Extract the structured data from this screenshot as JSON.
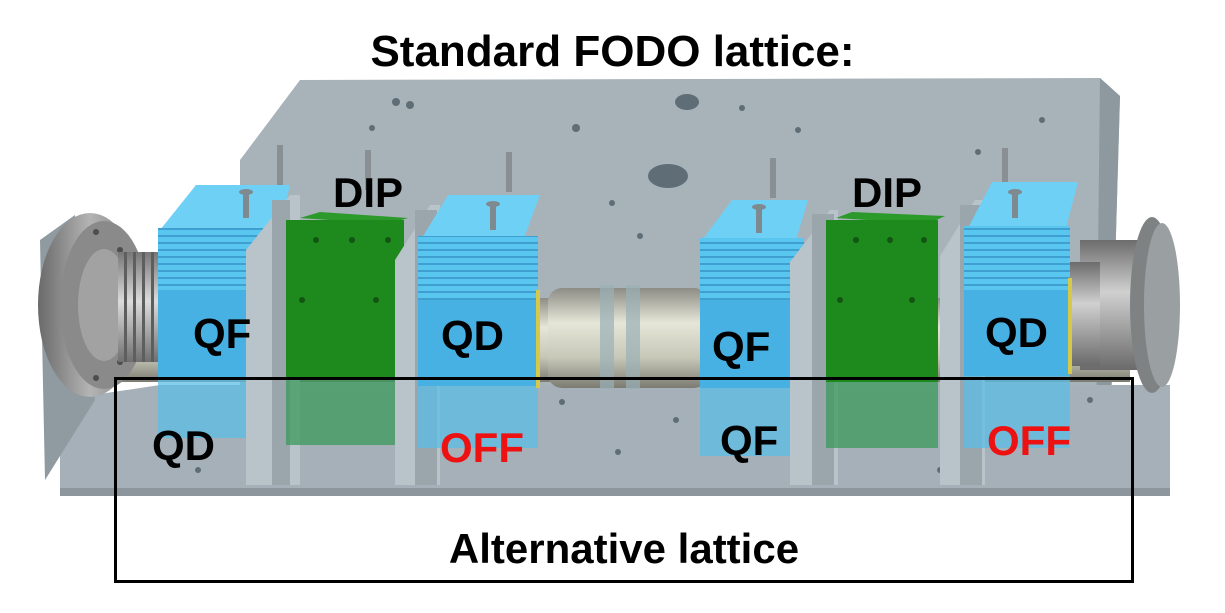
{
  "title": "Standard FODO lattice:",
  "standard_lattice": {
    "labels": [
      "QF",
      "DIP",
      "QD",
      "QF",
      "DIP",
      "QD"
    ]
  },
  "alternative_lattice": {
    "title": "Alternative lattice",
    "labels": [
      "QD",
      "OFF",
      "QF",
      "OFF"
    ]
  },
  "colors": {
    "quadrupole": "#57c3ee",
    "dipole": "#1e8a1e",
    "baseplate": "#a9b4bb",
    "off_text": "#ee1111",
    "text": "#000000"
  }
}
